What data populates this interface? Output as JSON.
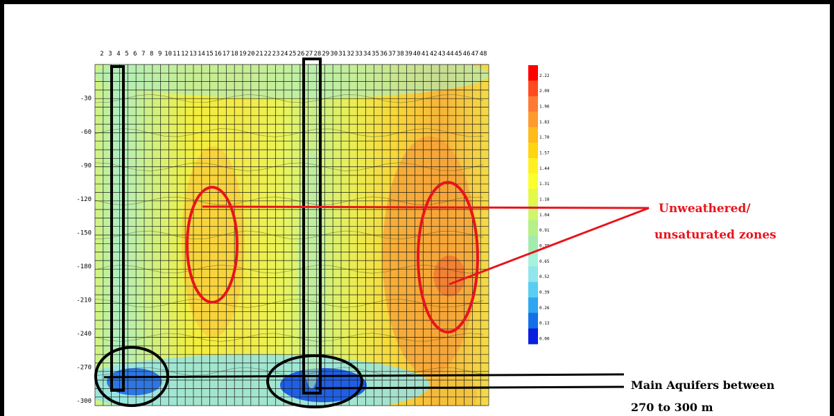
{
  "chart_data": {
    "type": "heatmap",
    "title": "",
    "xlabel": "",
    "ylabel": "",
    "x_ticks": [
      "2",
      "3",
      "4",
      "5",
      "6",
      "7",
      "8",
      "9",
      "10",
      "11",
      "12",
      "13",
      "14",
      "15",
      "16",
      "17",
      "18",
      "19",
      "20",
      "21",
      "22",
      "23",
      "24",
      "25",
      "26",
      "27",
      "28",
      "29",
      "30",
      "31",
      "32",
      "33",
      "34",
      "35",
      "36",
      "37",
      "38",
      "39",
      "40",
      "41",
      "42",
      "43",
      "44",
      "45",
      "46",
      "47",
      "48"
    ],
    "y_ticks": [
      "-30",
      "-60",
      "-90",
      "-120",
      "-150",
      "-180",
      "-210",
      "-240",
      "-270",
      "-300"
    ],
    "ylim": [
      -300,
      0
    ],
    "colorbar_labels": [
      "2.22",
      "2.09",
      "1.96",
      "1.83",
      "1.70",
      "1.57",
      "1.44",
      "1.31",
      "1.18",
      "1.04",
      "0.91",
      "0.78",
      "0.65",
      "0.52",
      "0.39",
      "0.26",
      "0.13",
      "0.00"
    ],
    "colorbar_colors": [
      "#ff0000",
      "#ff4a1e",
      "#ff7a34",
      "#ff9a2e",
      "#ffbb1a",
      "#ffd510",
      "#fff020",
      "#fbff2e",
      "#e4f848",
      "#cff66c",
      "#b6f088",
      "#a2ecb0",
      "#a6f2dc",
      "#90e6ec",
      "#58cef2",
      "#2ea6f0",
      "#1470e8",
      "#0a1ee0"
    ],
    "annotations": {
      "unsaturated": {
        "line1": "Unweathered/",
        "line2": "unsaturated zones"
      },
      "aquifers": {
        "line1": "Main Aquifers between",
        "line2": "270 to 300 m"
      }
    }
  }
}
